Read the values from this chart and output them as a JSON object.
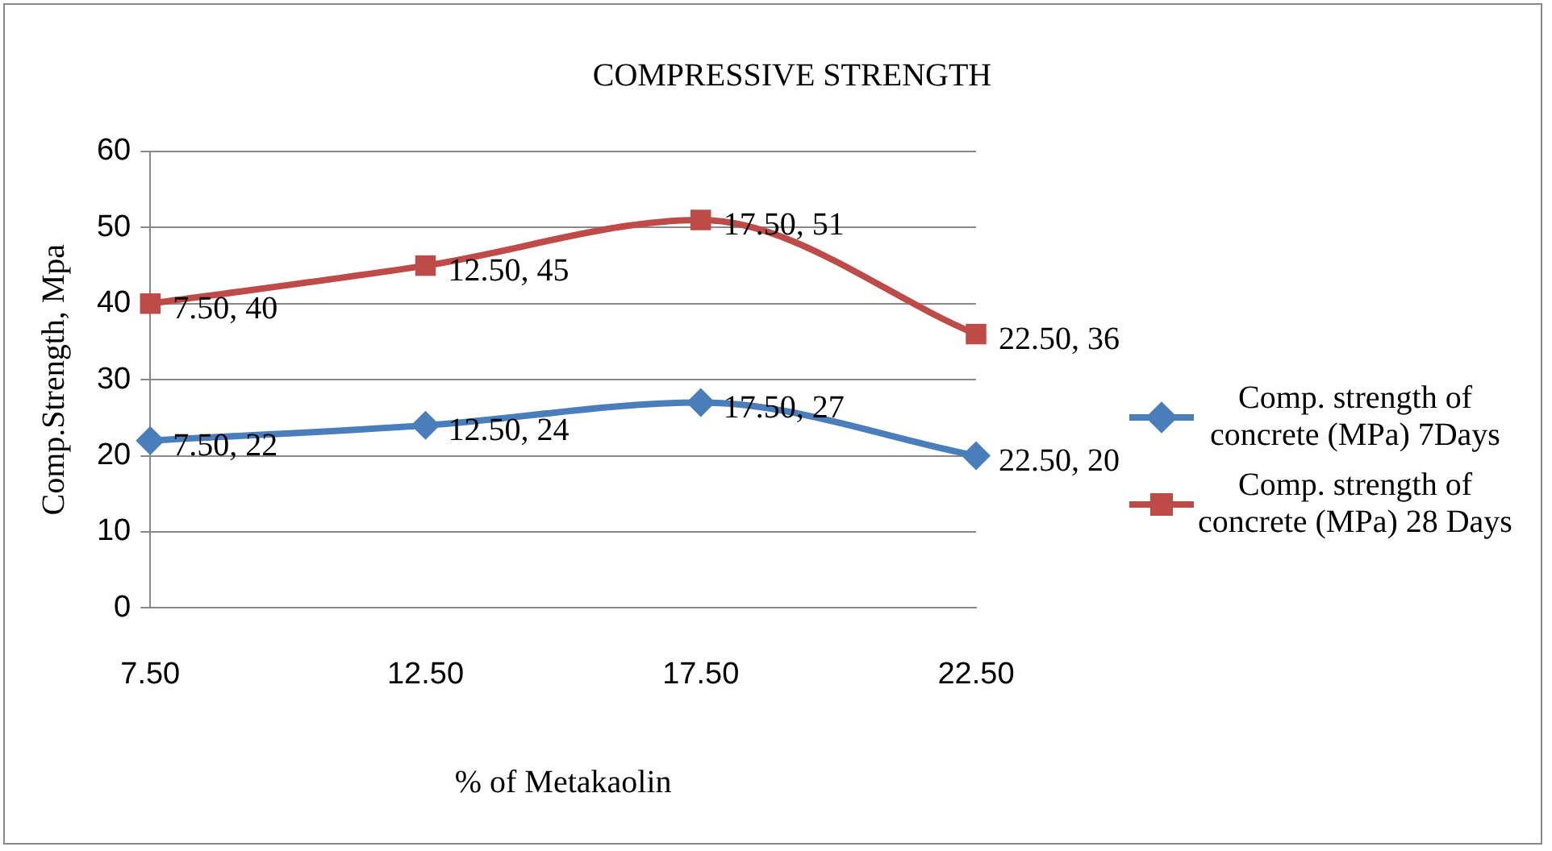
{
  "chart_data": {
    "type": "line",
    "title": "COMPRESSIVE STRENGTH",
    "xlabel": "% of Metakaolin",
    "ylabel": "Comp.Strength, Mpa",
    "categories": [
      "7.50",
      "12.50",
      "17.50",
      "22.50"
    ],
    "series": [
      {
        "name": "Comp. strength of concrete  (MPa) 7Days",
        "color": "#4a7ebb",
        "marker": "diamond",
        "values": [
          22,
          24,
          27,
          20
        ],
        "value_labels": [
          "7.50, 22",
          "12.50, 24",
          "17.50, 27",
          "22.50, 20"
        ]
      },
      {
        "name": "Comp. strength of concrete  (MPa)  28 Days",
        "color": "#be4b48",
        "marker": "square",
        "values": [
          40,
          45,
          51,
          36
        ],
        "value_labels": [
          "7.50, 40",
          "12.50, 45",
          "17.50, 51",
          "22.50, 36"
        ]
      }
    ],
    "ylim": [
      0,
      60
    ],
    "yticks": [
      0,
      10,
      20,
      30,
      40,
      50,
      60
    ],
    "grid": "y",
    "legend": "right"
  }
}
